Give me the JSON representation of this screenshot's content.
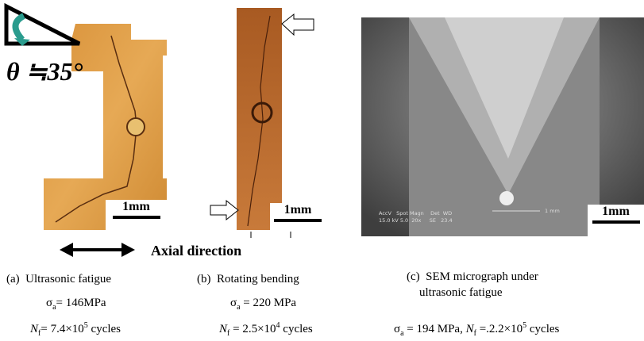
{
  "angle": "θ ≒35°",
  "axial": "Axial direction",
  "sem": {
    "line1": "AccV   Spot Magn    Det  WD",
    "line2": "15.0 kV 5.0  20x     SE   23.4",
    "bar": "1 mm"
  },
  "panels": [
    {
      "caption": "(a)  Ultrasonic fatigue",
      "scale": "1mm",
      "stress": {
        "sym": "σ",
        "sub": "a",
        "rest": "= 146MPa"
      },
      "life": {
        "sym": "N",
        "sub": "f",
        "rest": "= 7.4×10",
        "exp": "5",
        "unit": " cycles"
      }
    },
    {
      "caption": "(b)  Rotating bending",
      "scale": "1mm",
      "stress": {
        "sym": "σ",
        "sub": "a",
        "rest": " = 220 MPa"
      },
      "life": {
        "sym": "N",
        "sub": "f",
        "rest": " = 2.5×10",
        "exp": "4",
        "unit": " cycles"
      }
    },
    {
      "caption": "(c)  SEM micrograph under",
      "caption2": "ultrasonic fatigue",
      "scale": "1mm",
      "stress": {
        "sym": "σ",
        "sub": "a",
        "rest": " = 194 MPa, "
      },
      "life": {
        "sym": "N",
        "sub": "f",
        "rest": " =.2.2×10",
        "exp": "5",
        "unit": " cycles"
      }
    }
  ]
}
